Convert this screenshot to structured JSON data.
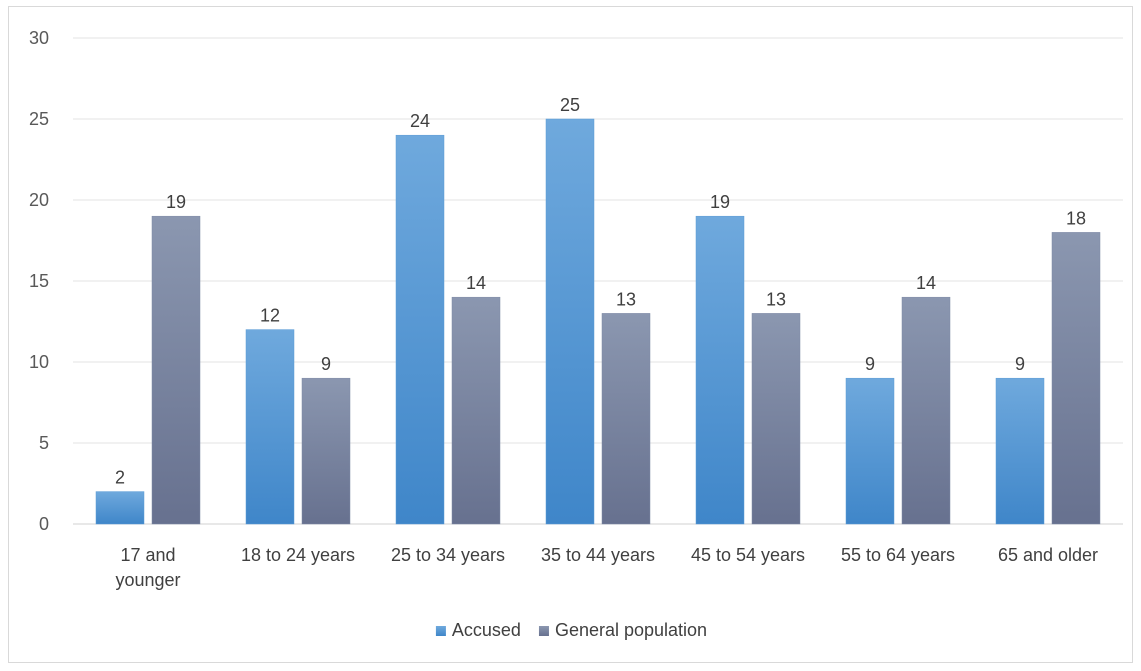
{
  "chart_data": {
    "type": "bar",
    "title": "",
    "xlabel": "",
    "ylabel": "",
    "ylim": [
      0,
      30
    ],
    "yticks": [
      0,
      5,
      10,
      15,
      20,
      25,
      30
    ],
    "grid": true,
    "legend_position": "bottom",
    "categories": [
      [
        "17 and",
        "younger"
      ],
      [
        "18 to 24 years"
      ],
      [
        "25 to 34 years"
      ],
      [
        "35 to 44 years"
      ],
      [
        "45 to 54 years"
      ],
      [
        "55 to 64 years"
      ],
      [
        "65 and older"
      ]
    ],
    "series": [
      {
        "name": "Accused",
        "color": "#5b9bd5",
        "values": [
          2,
          12,
          24,
          25,
          19,
          9,
          9
        ]
      },
      {
        "name": "General population",
        "color": "#7f8aa6",
        "values": [
          19,
          9,
          14,
          13,
          13,
          14,
          18
        ]
      }
    ]
  }
}
